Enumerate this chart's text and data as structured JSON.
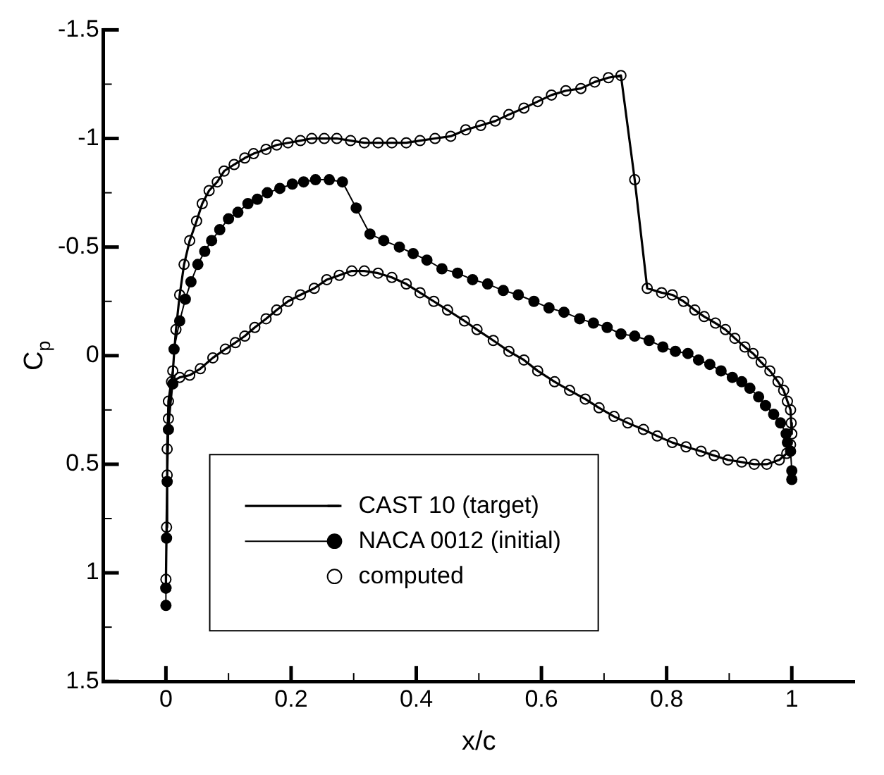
{
  "chart_data": {
    "type": "line",
    "xlabel": "x/c",
    "ylabel": "C$_{p}$",
    "xlim": [
      -0.1,
      1.1
    ],
    "ylim": [
      1.5,
      -1.5
    ],
    "xticks": [
      0,
      {
        "value": 0.1,
        "label": null
      },
      0.2,
      {
        "value": 0.3,
        "label": null
      },
      0.4,
      {
        "value": 0.5,
        "label": null
      },
      0.6,
      {
        "value": 0.7,
        "label": null
      },
      0.8,
      {
        "value": 0.9,
        "label": null
      },
      1
    ],
    "yticks": [
      {
        "value": -1.5,
        "label": "-1.5"
      },
      {
        "value": -1.25,
        "label": null
      },
      -1,
      {
        "value": -0.75,
        "label": null
      },
      -0.5,
      {
        "value": -0.25,
        "label": null
      },
      0,
      {
        "value": 0.25,
        "label": null
      },
      0.5,
      {
        "value": 0.75,
        "label": null
      },
      1,
      {
        "value": 1.25,
        "label": null
      },
      1.5
    ],
    "grid": false,
    "legend": "bottom",
    "series": [
      {
        "name": "CAST 10 (target)",
        "type": "line",
        "marker": "none",
        "line_style": "solid",
        "color": "#000000",
        "x": [
          0.998,
          0.992,
          0.98,
          0.96,
          0.94,
          0.92,
          0.898,
          0.876,
          0.855,
          0.831,
          0.809,
          0.785,
          0.763,
          0.738,
          0.716,
          0.692,
          0.67,
          0.645,
          0.621,
          0.594,
          0.572,
          0.548,
          0.523,
          0.497,
          0.477,
          0.45,
          0.428,
          0.406,
          0.384,
          0.361,
          0.339,
          0.317,
          0.297,
          0.277,
          0.257,
          0.237,
          0.215,
          0.195,
          0.177,
          0.16,
          0.142,
          0.126,
          0.111,
          0.095,
          0.075,
          0.055,
          0.038,
          0.022,
          0.009,
          0.004,
          0.002,
          0,
          0,
          0.001,
          0.002,
          0.004,
          0.011,
          0.016,
          0.022,
          0.029,
          0.038,
          0.049,
          0.058,
          0.069,
          0.082,
          0.093,
          0.109,
          0.126,
          0.14,
          0.16,
          0.177,
          0.195,
          0.215,
          0.233,
          0.253,
          0.273,
          0.295,
          0.317,
          0.339,
          0.361,
          0.384,
          0.406,
          0.43,
          0.455,
          0.479,
          0.503,
          0.526,
          0.548,
          0.572,
          0.594,
          0.616,
          0.639,
          0.663,
          0.685,
          0.707,
          0.727,
          0.749,
          0.769,
          0.792,
          0.809,
          0.827,
          0.845,
          0.86,
          0.878,
          0.894,
          0.909,
          0.925,
          0.938,
          0.951,
          0.965,
          0.978,
          0.987,
          0.993,
          0.998,
          0.999,
          1
        ],
        "values": [
          0.41,
          0.45,
          0.48,
          0.5,
          0.5,
          0.49,
          0.48,
          0.46,
          0.44,
          0.42,
          0.4,
          0.37,
          0.34,
          0.31,
          0.28,
          0.24,
          0.2,
          0.16,
          0.12,
          0.07,
          0.02,
          -0.02,
          -0.07,
          -0.12,
          -0.16,
          -0.21,
          -0.25,
          -0.29,
          -0.33,
          -0.36,
          -0.38,
          -0.39,
          -0.39,
          -0.37,
          -0.35,
          -0.31,
          -0.28,
          -0.25,
          -0.21,
          -0.17,
          -0.13,
          -0.09,
          -0.06,
          -0.03,
          0.01,
          0.06,
          0.09,
          0.1,
          0.12,
          0.29,
          0.55,
          1.03,
          1.07,
          0.79,
          0.43,
          0.21,
          0.07,
          -0.12,
          -0.28,
          -0.42,
          -0.53,
          -0.62,
          -0.7,
          -0.76,
          -0.8,
          -0.85,
          -0.88,
          -0.91,
          -0.93,
          -0.95,
          -0.97,
          -0.98,
          -0.99,
          -1,
          -1,
          -1,
          -0.99,
          -0.98,
          -0.98,
          -0.98,
          -0.98,
          -0.99,
          -1,
          -1.01,
          -1.04,
          -1.06,
          -1.08,
          -1.11,
          -1.14,
          -1.17,
          -1.2,
          -1.22,
          -1.23,
          -1.26,
          -1.28,
          -1.29,
          -0.81,
          -0.31,
          -0.29,
          -0.28,
          -0.25,
          -0.21,
          -0.18,
          -0.15,
          -0.12,
          -0.08,
          -0.04,
          -0.01,
          0.03,
          0.07,
          0.12,
          0.16,
          0.21,
          0.25,
          0.31,
          0.36
        ]
      },
      {
        "name": "NACA 0012 (initial)",
        "type": "line",
        "marker": "circle",
        "line_style": "solid",
        "color": "#000000",
        "x": [
          0,
          0,
          0.001,
          0.002,
          0.004,
          0.011,
          0.013,
          0.022,
          0.031,
          0.04,
          0.051,
          0.062,
          0.073,
          0.086,
          0.1,
          0.115,
          0.131,
          0.146,
          0.162,
          0.182,
          0.202,
          0.22,
          0.239,
          0.261,
          0.282,
          0.304,
          0.326,
          0.348,
          0.373,
          0.395,
          0.417,
          0.441,
          0.466,
          0.49,
          0.514,
          0.539,
          0.563,
          0.588,
          0.612,
          0.636,
          0.661,
          0.683,
          0.705,
          0.727,
          0.749,
          0.772,
          0.794,
          0.814,
          0.834,
          0.851,
          0.869,
          0.887,
          0.905,
          0.92,
          0.933,
          0.947,
          0.958,
          0.971,
          0.982,
          0.991,
          0.993,
          0.998,
          1,
          1
        ],
        "values": [
          1.15,
          1.07,
          0.84,
          0.58,
          0.34,
          0.13,
          -0.03,
          -0.16,
          -0.26,
          -0.34,
          -0.42,
          -0.48,
          -0.53,
          -0.58,
          -0.63,
          -0.66,
          -0.7,
          -0.72,
          -0.75,
          -0.77,
          -0.79,
          -0.8,
          -0.81,
          -0.81,
          -0.8,
          -0.68,
          -0.56,
          -0.53,
          -0.5,
          -0.47,
          -0.44,
          -0.4,
          -0.38,
          -0.35,
          -0.33,
          -0.3,
          -0.28,
          -0.25,
          -0.22,
          -0.2,
          -0.17,
          -0.15,
          -0.13,
          -0.1,
          -0.09,
          -0.07,
          -0.04,
          -0.02,
          -0.01,
          0.02,
          0.04,
          0.07,
          0.1,
          0.12,
          0.15,
          0.19,
          0.23,
          0.27,
          0.31,
          0.36,
          0.4,
          0.44,
          0.53,
          0.57
        ]
      },
      {
        "name": "computed",
        "type": "scatter",
        "marker": "circle",
        "color": "#000000",
        "x": [
          0.998,
          0.992,
          0.98,
          0.96,
          0.94,
          0.92,
          0.898,
          0.876,
          0.855,
          0.831,
          0.809,
          0.785,
          0.763,
          0.738,
          0.716,
          0.692,
          0.67,
          0.645,
          0.621,
          0.594,
          0.572,
          0.548,
          0.523,
          0.497,
          0.477,
          0.45,
          0.428,
          0.406,
          0.384,
          0.361,
          0.339,
          0.317,
          0.297,
          0.277,
          0.257,
          0.237,
          0.215,
          0.195,
          0.177,
          0.16,
          0.142,
          0.126,
          0.111,
          0.095,
          0.075,
          0.055,
          0.038,
          0.022,
          0.009,
          0.004,
          0.002,
          0,
          0,
          0.001,
          0.002,
          0.004,
          0.011,
          0.016,
          0.022,
          0.029,
          0.038,
          0.049,
          0.058,
          0.069,
          0.082,
          0.093,
          0.109,
          0.126,
          0.14,
          0.16,
          0.177,
          0.195,
          0.215,
          0.233,
          0.253,
          0.273,
          0.295,
          0.317,
          0.339,
          0.361,
          0.384,
          0.406,
          0.43,
          0.455,
          0.479,
          0.503,
          0.526,
          0.548,
          0.572,
          0.594,
          0.616,
          0.639,
          0.663,
          0.685,
          0.707,
          0.727,
          0.749,
          0.769,
          0.792,
          0.809,
          0.827,
          0.845,
          0.86,
          0.878,
          0.894,
          0.909,
          0.925,
          0.938,
          0.951,
          0.965,
          0.978,
          0.987,
          0.993,
          0.998,
          0.999,
          1
        ],
        "values": [
          0.41,
          0.45,
          0.48,
          0.5,
          0.5,
          0.49,
          0.48,
          0.46,
          0.44,
          0.42,
          0.4,
          0.37,
          0.34,
          0.31,
          0.28,
          0.24,
          0.2,
          0.16,
          0.12,
          0.07,
          0.02,
          -0.02,
          -0.07,
          -0.12,
          -0.16,
          -0.21,
          -0.25,
          -0.29,
          -0.33,
          -0.36,
          -0.38,
          -0.39,
          -0.39,
          -0.37,
          -0.35,
          -0.31,
          -0.28,
          -0.25,
          -0.21,
          -0.17,
          -0.13,
          -0.09,
          -0.06,
          -0.03,
          0.01,
          0.06,
          0.09,
          0.1,
          0.12,
          0.29,
          0.55,
          1.03,
          1.07,
          0.79,
          0.43,
          0.21,
          0.07,
          -0.12,
          -0.28,
          -0.42,
          -0.53,
          -0.62,
          -0.7,
          -0.76,
          -0.8,
          -0.85,
          -0.88,
          -0.91,
          -0.93,
          -0.95,
          -0.97,
          -0.98,
          -0.99,
          -1,
          -1,
          -1,
          -0.99,
          -0.98,
          -0.98,
          -0.98,
          -0.98,
          -0.99,
          -1,
          -1.01,
          -1.04,
          -1.06,
          -1.08,
          -1.11,
          -1.14,
          -1.17,
          -1.2,
          -1.22,
          -1.23,
          -1.26,
          -1.28,
          -1.29,
          -0.81,
          -0.31,
          -0.29,
          -0.28,
          -0.25,
          -0.21,
          -0.18,
          -0.15,
          -0.12,
          -0.08,
          -0.04,
          -0.01,
          0.03,
          0.07,
          0.12,
          0.16,
          0.21,
          0.25,
          0.31,
          0.36
        ]
      }
    ]
  }
}
